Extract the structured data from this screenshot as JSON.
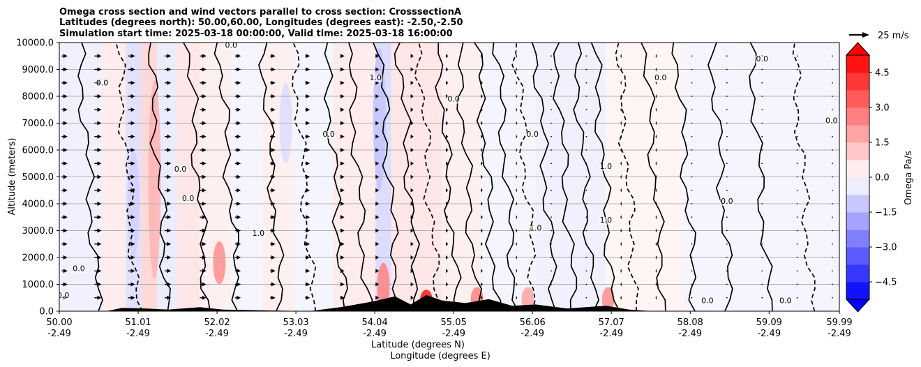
{
  "chart_data": {
    "type": "heatmap",
    "title_lines": [
      "Omega cross section and wind vectors parallel to cross section: CrosssectionA",
      "Latitudes (degrees north): 50.00,60.00, Longitudes (degrees east): -2.50,-2.50",
      "Simulation start time: 2025-03-18 00:00:00, Valid time: 2025-03-18 16:00:00"
    ],
    "ylabel": "Altitude (meters)",
    "xlabel_lines": [
      "Latitude (degrees N)",
      "Longitude (degrees E)"
    ],
    "ylim": [
      0,
      10000
    ],
    "xlim": [
      50.0,
      59.99
    ],
    "y_ticks": [
      {
        "value": 0,
        "label": "0.0"
      },
      {
        "value": 1000,
        "label": "1000.0"
      },
      {
        "value": 2000,
        "label": "2000.0"
      },
      {
        "value": 3000,
        "label": "3000.0"
      },
      {
        "value": 4000,
        "label": "4000.0"
      },
      {
        "value": 5000,
        "label": "5000.0"
      },
      {
        "value": 6000,
        "label": "6000.0"
      },
      {
        "value": 7000,
        "label": "7000.0"
      },
      {
        "value": 8000,
        "label": "8000.0"
      },
      {
        "value": 9000,
        "label": "9000.0"
      },
      {
        "value": 10000,
        "label": "10000.0"
      }
    ],
    "x_ticks": [
      {
        "value": 50.0,
        "lat": "50.00",
        "lon": "-2.49"
      },
      {
        "value": 51.01,
        "lat": "51.01",
        "lon": "-2.49"
      },
      {
        "value": 52.02,
        "lat": "52.02",
        "lon": "-2.49"
      },
      {
        "value": 53.03,
        "lat": "53.03",
        "lon": "-2.49"
      },
      {
        "value": 54.04,
        "lat": "54.04",
        "lon": "-2.49"
      },
      {
        "value": 55.05,
        "lat": "55.05",
        "lon": "-2.49"
      },
      {
        "value": 56.06,
        "lat": "56.06",
        "lon": "-2.49"
      },
      {
        "value": 57.07,
        "lat": "57.07",
        "lon": "-2.49"
      },
      {
        "value": 58.08,
        "lat": "58.08",
        "lon": "-2.49"
      },
      {
        "value": 59.09,
        "lat": "59.09",
        "lon": "-2.49"
      },
      {
        "value": 59.99,
        "lat": "59.99",
        "lon": "-2.49"
      }
    ],
    "grid": "horizontal",
    "colorbar": {
      "label": "Omega Pa/s",
      "vmin": -5.25,
      "vmax": 5.25,
      "extend": "both",
      "ticks": [
        {
          "value": 4.5,
          "label": "4.5"
        },
        {
          "value": 3.0,
          "label": "3.0"
        },
        {
          "value": 1.5,
          "label": "1.5"
        },
        {
          "value": 0.0,
          "label": "0.0"
        },
        {
          "value": -1.5,
          "label": "−1.5"
        },
        {
          "value": -3.0,
          "label": "−3.0"
        },
        {
          "value": -4.5,
          "label": "−4.5"
        }
      ]
    },
    "vector_key": {
      "label": "25 m/s",
      "speed": 25
    },
    "regions": [
      {
        "lat0": 50.0,
        "lat1": 50.55,
        "omega": -0.3
      },
      {
        "lat0": 50.55,
        "lat1": 50.85,
        "omega": 0.4
      },
      {
        "lat0": 50.85,
        "lat1": 51.05,
        "omega": -0.6
      },
      {
        "lat0": 51.05,
        "lat1": 51.25,
        "omega": 0.8
      },
      {
        "lat0": 51.25,
        "lat1": 51.5,
        "omega": -0.4
      },
      {
        "lat0": 51.5,
        "lat1": 51.8,
        "omega": 0.5
      },
      {
        "lat0": 51.8,
        "lat1": 52.2,
        "omega": 0.3
      },
      {
        "lat0": 52.2,
        "lat1": 52.6,
        "omega": -0.2
      },
      {
        "lat0": 52.6,
        "lat1": 53.0,
        "omega": 0.3
      },
      {
        "lat0": 53.0,
        "lat1": 53.5,
        "omega": -0.2
      },
      {
        "lat0": 53.5,
        "lat1": 54.05,
        "omega": 0.4
      },
      {
        "lat0": 54.05,
        "lat1": 54.25,
        "omega": -0.7
      },
      {
        "lat0": 54.25,
        "lat1": 54.9,
        "omega": 0.5
      },
      {
        "lat0": 54.9,
        "lat1": 55.4,
        "omega": 0.3
      },
      {
        "lat0": 55.4,
        "lat1": 56.1,
        "omega": -0.2
      },
      {
        "lat0": 56.1,
        "lat1": 57.0,
        "omega": -0.3
      },
      {
        "lat0": 57.0,
        "lat1": 58.0,
        "omega": 0.2
      },
      {
        "lat0": 58.0,
        "lat1": 59.99,
        "omega": -0.2
      }
    ],
    "hotspots": [
      {
        "lat": 51.22,
        "alt0": 1200,
        "alt1": 8600,
        "omega": 1.5
      },
      {
        "lat": 52.05,
        "alt0": 1000,
        "alt1": 2600,
        "omega": 2.2
      },
      {
        "lat": 54.15,
        "alt0": 0,
        "alt1": 1800,
        "omega": 2.5
      },
      {
        "lat": 54.7,
        "alt0": 0,
        "alt1": 800,
        "omega": 4.5
      },
      {
        "lat": 55.35,
        "alt0": 0,
        "alt1": 900,
        "omega": 2.5
      },
      {
        "lat": 56.0,
        "alt0": 0,
        "alt1": 900,
        "omega": 1.8
      },
      {
        "lat": 57.03,
        "alt0": 0,
        "alt1": 900,
        "omega": 2.2
      },
      {
        "lat": 54.1,
        "alt0": 4500,
        "alt1": 9800,
        "omega": -1.2
      },
      {
        "lat": 50.95,
        "alt0": 2000,
        "alt1": 6000,
        "omega": -0.9
      },
      {
        "lat": 52.9,
        "alt0": 5500,
        "alt1": 8500,
        "omega": -0.7
      }
    ],
    "contour_lats": [
      50.5,
      51.0,
      51.4,
      51.9,
      52.3,
      52.85,
      53.25,
      53.65,
      53.95,
      54.35,
      54.6,
      54.85,
      55.1,
      55.35,
      55.6,
      55.85,
      56.1,
      56.35,
      56.6,
      56.85,
      57.1,
      57.4,
      57.75,
      58.15,
      58.6,
      59.1,
      59.65
    ],
    "contour_labels": [
      {
        "lat": 50.05,
        "alt": 500,
        "text": "0.0"
      },
      {
        "lat": 50.25,
        "alt": 1500,
        "text": "0.0"
      },
      {
        "lat": 50.55,
        "alt": 8400,
        "text": "0.0"
      },
      {
        "lat": 51.55,
        "alt": 5200,
        "text": "0.0"
      },
      {
        "lat": 51.65,
        "alt": 4100,
        "text": "0.0"
      },
      {
        "lat": 52.2,
        "alt": 9800,
        "text": "0.0"
      },
      {
        "lat": 52.55,
        "alt": 2800,
        "text": "1.0"
      },
      {
        "lat": 53.45,
        "alt": 6500,
        "text": "0.0"
      },
      {
        "lat": 54.05,
        "alt": 8600,
        "text": "1.0"
      },
      {
        "lat": 55.05,
        "alt": 7800,
        "text": "0.0"
      },
      {
        "lat": 56.06,
        "alt": 6500,
        "text": "0.0"
      },
      {
        "lat": 56.1,
        "alt": 3000,
        "text": "1.0"
      },
      {
        "lat": 57.0,
        "alt": 5300,
        "text": "1.0"
      },
      {
        "lat": 57.0,
        "alt": 3300,
        "text": "1.0"
      },
      {
        "lat": 57.7,
        "alt": 8600,
        "text": "0.0"
      },
      {
        "lat": 58.55,
        "alt": 4000,
        "text": "0.0"
      },
      {
        "lat": 59.0,
        "alt": 9300,
        "text": "0.0"
      },
      {
        "lat": 59.89,
        "alt": 7000,
        "text": "0.0"
      },
      {
        "lat": 58.3,
        "alt": 300,
        "text": "0.0"
      },
      {
        "lat": 59.3,
        "alt": 300,
        "text": "0.0"
      }
    ],
    "terrain": [
      {
        "lat": 50.0,
        "alt": 0
      },
      {
        "lat": 50.6,
        "alt": 0
      },
      {
        "lat": 50.8,
        "alt": 120
      },
      {
        "lat": 51.1,
        "alt": 100
      },
      {
        "lat": 51.4,
        "alt": 60
      },
      {
        "lat": 51.8,
        "alt": 150
      },
      {
        "lat": 52.1,
        "alt": 60
      },
      {
        "lat": 52.6,
        "alt": 30
      },
      {
        "lat": 53.2,
        "alt": 0
      },
      {
        "lat": 53.6,
        "alt": 150
      },
      {
        "lat": 54.0,
        "alt": 350
      },
      {
        "lat": 54.3,
        "alt": 550
      },
      {
        "lat": 54.5,
        "alt": 250
      },
      {
        "lat": 54.7,
        "alt": 600
      },
      {
        "lat": 54.9,
        "alt": 400
      },
      {
        "lat": 55.2,
        "alt": 300
      },
      {
        "lat": 55.5,
        "alt": 450
      },
      {
        "lat": 55.8,
        "alt": 200
      },
      {
        "lat": 56.1,
        "alt": 250
      },
      {
        "lat": 56.5,
        "alt": 100
      },
      {
        "lat": 57.0,
        "alt": 200
      },
      {
        "lat": 57.3,
        "alt": 60
      },
      {
        "lat": 57.6,
        "alt": 0
      },
      {
        "lat": 59.99,
        "alt": 0
      }
    ],
    "wind_columns": [
      {
        "lat": 50.03,
        "u": 10
      },
      {
        "lat": 50.45,
        "u": 12
      },
      {
        "lat": 50.88,
        "u": 12
      },
      {
        "lat": 51.35,
        "u": 11
      },
      {
        "lat": 51.8,
        "u": 11
      },
      {
        "lat": 52.25,
        "u": 10
      },
      {
        "lat": 52.7,
        "u": 9
      },
      {
        "lat": 53.15,
        "u": 8
      },
      {
        "lat": 53.6,
        "u": 7
      },
      {
        "lat": 54.05,
        "u": 6
      },
      {
        "lat": 54.5,
        "u": 5
      },
      {
        "lat": 54.95,
        "u": 4
      },
      {
        "lat": 55.4,
        "u": 3
      },
      {
        "lat": 55.85,
        "u": 2
      },
      {
        "lat": 56.3,
        "u": 1
      },
      {
        "lat": 56.75,
        "u": -1
      },
      {
        "lat": 57.2,
        "u": -2
      },
      {
        "lat": 57.65,
        "u": -2
      },
      {
        "lat": 58.1,
        "u": -1
      },
      {
        "lat": 58.55,
        "u": -1
      },
      {
        "lat": 59.0,
        "u": -1
      },
      {
        "lat": 59.45,
        "u": -1
      },
      {
        "lat": 59.9,
        "u": -1
      }
    ],
    "wind_levels": [
      500,
      1000,
      1500,
      2000,
      2500,
      3000,
      3500,
      4000,
      4500,
      5000,
      5500,
      6000,
      6500,
      7000,
      7500,
      8000,
      8500,
      9000,
      9500
    ]
  }
}
